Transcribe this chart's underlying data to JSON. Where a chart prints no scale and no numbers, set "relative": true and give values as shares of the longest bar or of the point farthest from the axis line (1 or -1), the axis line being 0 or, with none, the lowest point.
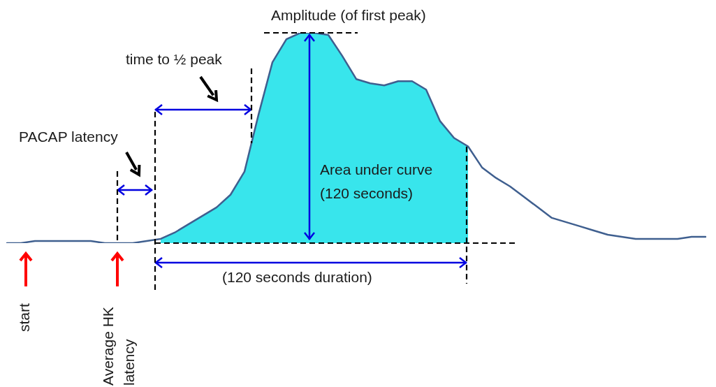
{
  "chart_data": {
    "type": "line",
    "relative": true,
    "legend": false,
    "tick_labels": false,
    "marker": "none",
    "line_style": "solid",
    "categories": [
      null,
      null,
      null,
      null,
      null,
      null,
      null,
      null,
      null,
      null,
      null,
      null,
      null,
      null,
      null,
      null,
      null,
      null,
      null,
      null,
      null,
      null,
      null,
      null,
      null,
      null,
      null,
      null,
      null,
      null,
      null,
      null,
      null,
      null,
      null,
      null,
      null,
      null,
      null,
      null,
      null,
      null,
      null,
      null,
      null,
      null,
      null,
      null,
      null,
      null,
      null
    ],
    "series": [
      {
        "type": "area",
        "color": "#38e5ec",
        "values": [
          null,
          null,
          null,
          null,
          null,
          null,
          null,
          null,
          null,
          null,
          null,
          0.02,
          0.05,
          0.09,
          0.13,
          0.17,
          0.23,
          0.34,
          0.61,
          0.86,
          0.97,
          1,
          1,
          0.99,
          0.89,
          0.78,
          0.76,
          0.75,
          0.77,
          0.77,
          0.73,
          0.58,
          0.5,
          0.46,
          null,
          null,
          null,
          null,
          null,
          null,
          null,
          null,
          null,
          null,
          null,
          null,
          null,
          null,
          null,
          null,
          null
        ]
      },
      {
        "color": "#3f5f8f",
        "values": [
          0,
          0,
          0.01,
          0.01,
          0.01,
          0.01,
          0.01,
          0,
          0,
          0,
          0.01,
          0.02,
          0.05,
          0.09,
          0.13,
          0.17,
          0.23,
          0.34,
          0.61,
          0.86,
          0.97,
          1,
          1,
          0.99,
          0.89,
          0.78,
          0.76,
          0.75,
          0.77,
          0.77,
          0.73,
          0.58,
          0.5,
          0.46,
          0.36,
          0.31,
          0.27,
          0.22,
          0.17,
          0.12,
          0.1,
          0.08,
          0.06,
          0.04,
          0.03,
          0.02,
          0.02,
          0.02,
          0.02,
          0.03,
          0.03
        ]
      }
    ],
    "ref_lines": [
      {
        "axis": "y",
        "value": 0,
        "color": "#000000",
        "line_style": "dashed"
      },
      {
        "axis": "y",
        "value": 1,
        "color": "#000000",
        "line_style": "dashed"
      }
    ],
    "annotations": [
      "Amplitude (of first peak)",
      "time to ½ peak",
      "PACAP latency",
      "Area under curve (120 seconds)",
      "(120 seconds duration)",
      "start",
      "Average HK latency"
    ]
  }
}
